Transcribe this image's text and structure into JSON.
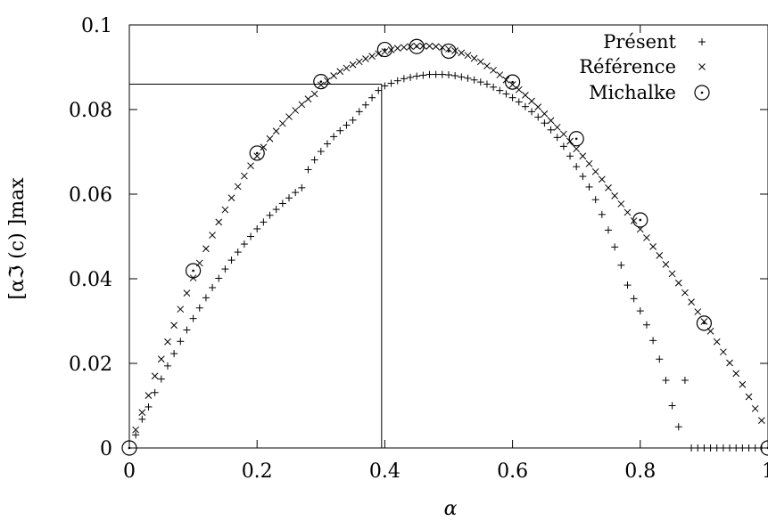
{
  "chart_data": {
    "type": "scatter",
    "xlabel": "α",
    "ylabel": "[αℑ (c) ]max",
    "xlim": [
      0,
      1
    ],
    "ylim": [
      0,
      0.1
    ],
    "x_ticks": [
      "0",
      "0.2",
      "0.4",
      "0.6",
      "0.8",
      "1"
    ],
    "y_ticks": [
      "0",
      "0.02",
      "0.04",
      "0.06",
      "0.08",
      "0.1"
    ],
    "grid": false,
    "legend_position": "top-right",
    "reference_line": {
      "x": 0.395,
      "y": 0.086
    },
    "series": [
      {
        "name": "Présent",
        "marker": "plus",
        "x": [
          0.01,
          0.02,
          0.03,
          0.04,
          0.05,
          0.06,
          0.07,
          0.08,
          0.09,
          0.1,
          0.11,
          0.12,
          0.13,
          0.14,
          0.15,
          0.16,
          0.17,
          0.18,
          0.19,
          0.2,
          0.21,
          0.22,
          0.23,
          0.24,
          0.25,
          0.26,
          0.27,
          0.28,
          0.29,
          0.3,
          0.31,
          0.32,
          0.33,
          0.34,
          0.35,
          0.36,
          0.37,
          0.38,
          0.39,
          0.4,
          0.41,
          0.42,
          0.43,
          0.44,
          0.45,
          0.46,
          0.47,
          0.48,
          0.49,
          0.5,
          0.51,
          0.52,
          0.53,
          0.54,
          0.55,
          0.56,
          0.57,
          0.58,
          0.59,
          0.6,
          0.61,
          0.62,
          0.63,
          0.64,
          0.65,
          0.66,
          0.67,
          0.68,
          0.69,
          0.7,
          0.71,
          0.72,
          0.73,
          0.74,
          0.75,
          0.76,
          0.77,
          0.78,
          0.79,
          0.8,
          0.81,
          0.82,
          0.83,
          0.84,
          0.85,
          0.86,
          0.87,
          0.88,
          0.89,
          0.9,
          0.91,
          0.92,
          0.93,
          0.94,
          0.95,
          0.96,
          0.97,
          0.98,
          0.99
        ],
        "y": [
          0.0031,
          0.0068,
          0.0097,
          0.0131,
          0.0163,
          0.0194,
          0.0223,
          0.0252,
          0.0279,
          0.0306,
          0.0331,
          0.0355,
          0.0379,
          0.0401,
          0.0423,
          0.0444,
          0.0463,
          0.0482,
          0.05,
          0.0518,
          0.0534,
          0.055,
          0.0564,
          0.0578,
          0.0591,
          0.0604,
          0.0615,
          0.0658,
          0.0681,
          0.0701,
          0.0719,
          0.0736,
          0.075,
          0.0763,
          0.0775,
          0.0795,
          0.0811,
          0.0828,
          0.0845,
          0.0856,
          0.0862,
          0.0868,
          0.0873,
          0.0876,
          0.0879,
          0.0881,
          0.0883,
          0.0883,
          0.0883,
          0.0882,
          0.088,
          0.0877,
          0.0874,
          0.087,
          0.0865,
          0.086,
          0.0853,
          0.0845,
          0.0837,
          0.0828,
          0.0818,
          0.0807,
          0.0795,
          0.0782,
          0.0768,
          0.0752,
          0.0734,
          0.0713,
          0.069,
          0.0665,
          0.0642,
          0.0617,
          0.0587,
          0.0552,
          0.0515,
          0.0475,
          0.0432,
          0.0385,
          0.0353,
          0.0324,
          0.0291,
          0.0254,
          0.021,
          0.016,
          0.01,
          0.005,
          0.016,
          0.0,
          0.0,
          0.0,
          0.0,
          0.0,
          0.0,
          0.0,
          0.0,
          0.0,
          0.0,
          0.0,
          0.0
        ]
      },
      {
        "name": "Référence",
        "marker": "cross",
        "x": [
          0.01,
          0.02,
          0.03,
          0.04,
          0.05,
          0.06,
          0.07,
          0.08,
          0.09,
          0.1,
          0.11,
          0.12,
          0.13,
          0.14,
          0.15,
          0.16,
          0.17,
          0.18,
          0.19,
          0.2,
          0.21,
          0.22,
          0.23,
          0.24,
          0.25,
          0.26,
          0.27,
          0.28,
          0.29,
          0.3,
          0.31,
          0.32,
          0.33,
          0.34,
          0.35,
          0.36,
          0.37,
          0.38,
          0.39,
          0.4,
          0.41,
          0.42,
          0.43,
          0.44,
          0.45,
          0.46,
          0.47,
          0.48,
          0.49,
          0.5,
          0.51,
          0.52,
          0.53,
          0.54,
          0.55,
          0.56,
          0.57,
          0.58,
          0.59,
          0.6,
          0.61,
          0.62,
          0.63,
          0.64,
          0.65,
          0.66,
          0.67,
          0.68,
          0.69,
          0.7,
          0.71,
          0.72,
          0.73,
          0.74,
          0.75,
          0.76,
          0.77,
          0.78,
          0.79,
          0.8,
          0.81,
          0.82,
          0.83,
          0.84,
          0.85,
          0.86,
          0.87,
          0.88,
          0.89,
          0.9,
          0.91,
          0.92,
          0.93,
          0.94,
          0.95,
          0.96,
          0.97,
          0.98,
          0.99
        ],
        "y": [
          0.0043,
          0.0084,
          0.0124,
          0.017,
          0.021,
          0.0251,
          0.029,
          0.0328,
          0.0366,
          0.0402,
          0.0437,
          0.0471,
          0.0503,
          0.0534,
          0.0563,
          0.0591,
          0.0618,
          0.0643,
          0.0667,
          0.069,
          0.0711,
          0.0731,
          0.0749,
          0.0767,
          0.0783,
          0.0798,
          0.0812,
          0.0825,
          0.0837,
          0.0858,
          0.0868,
          0.088,
          0.089,
          0.0898,
          0.0906,
          0.0913,
          0.092,
          0.0926,
          0.0932,
          0.0937,
          0.0941,
          0.0945,
          0.0947,
          0.0949,
          0.095,
          0.095,
          0.095,
          0.0949,
          0.0947,
          0.0943,
          0.0939,
          0.0934,
          0.0928,
          0.0921,
          0.0913,
          0.0903,
          0.0893,
          0.0882,
          0.087,
          0.0859,
          0.0847,
          0.0834,
          0.082,
          0.0806,
          0.079,
          0.0774,
          0.0758,
          0.0742,
          0.0725,
          0.0707,
          0.069,
          0.0672,
          0.0653,
          0.0635,
          0.0615,
          0.0596,
          0.0577,
          0.0557,
          0.0537,
          0.0517,
          0.0497,
          0.0476,
          0.0455,
          0.0434,
          0.0412,
          0.039,
          0.0367,
          0.0345,
          0.0322,
          0.0299,
          0.0276,
          0.0251,
          0.0227,
          0.0201,
          0.0176,
          0.015,
          0.0121,
          0.0093,
          0.0065
        ]
      },
      {
        "name": "Michalke",
        "marker": "circle-dot",
        "x": [
          0.0,
          0.1,
          0.2,
          0.3,
          0.4,
          0.45,
          0.5,
          0.6,
          0.7,
          0.8,
          0.9,
          1.0
        ],
        "y": [
          0.0,
          0.0419,
          0.0697,
          0.0866,
          0.0942,
          0.0949,
          0.0938,
          0.0865,
          0.0731,
          0.0539,
          0.0295,
          0.0
        ]
      }
    ]
  }
}
